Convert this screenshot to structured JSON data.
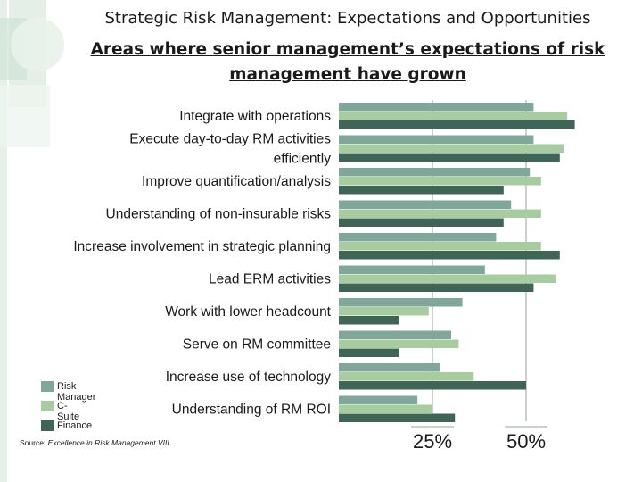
{
  "title": "Strategic Risk Management: Expectations and Opportunities",
  "subtitle": "Areas where senior management’s expectations of risk management have grown",
  "source_label": "Source:",
  "source_text": "Excellence in Risk Management VIII",
  "colors": {
    "risk_manager": "#7fa79a",
    "c_suite": "#a7cca0",
    "finance": "#3e6555",
    "decor_light": "#cfe3d6",
    "decor_mid": "#b5d4c3"
  },
  "chart_data": {
    "type": "bar",
    "orientation": "horizontal",
    "categories": [
      "Integrate with operations",
      "Execute day-to-day RM activities efficiently",
      "Improve quantification/analysis",
      "Understanding of non-insurable risks",
      "Increase involvement in strategic planning",
      "Lead ERM activities",
      "Work with lower headcount",
      "Serve on RM committee",
      "Increase use of technology",
      "Understanding of RM ROI"
    ],
    "category_lines": [
      [
        "Integrate with operations"
      ],
      [
        "Execute day-to-day RM activities",
        "efficiently"
      ],
      [
        "Improve quantification/analysis"
      ],
      [
        "Understanding of non-insurable risks"
      ],
      [
        "Increase involvement in strategic planning"
      ],
      [
        "Lead ERM activities"
      ],
      [
        "Work with lower headcount"
      ],
      [
        "Serve on RM committee"
      ],
      [
        "Increase use of technology"
      ],
      [
        "Understanding of RM ROI"
      ]
    ],
    "series": [
      {
        "name": "Risk Manager",
        "values": [
          52,
          52,
          51,
          46,
          42,
          39,
          33,
          30,
          27,
          21
        ]
      },
      {
        "name": "C-Suite",
        "values": [
          61,
          60,
          54,
          54,
          54,
          58,
          24,
          32,
          36,
          25
        ]
      },
      {
        "name": "Finance",
        "values": [
          63,
          59,
          44,
          44,
          59,
          52,
          16,
          16,
          50,
          31
        ]
      }
    ],
    "xticks": [
      25,
      50
    ],
    "xtick_labels": [
      "25%",
      "50%"
    ],
    "xlim": [
      0,
      70
    ],
    "legend": "bottom-left"
  }
}
